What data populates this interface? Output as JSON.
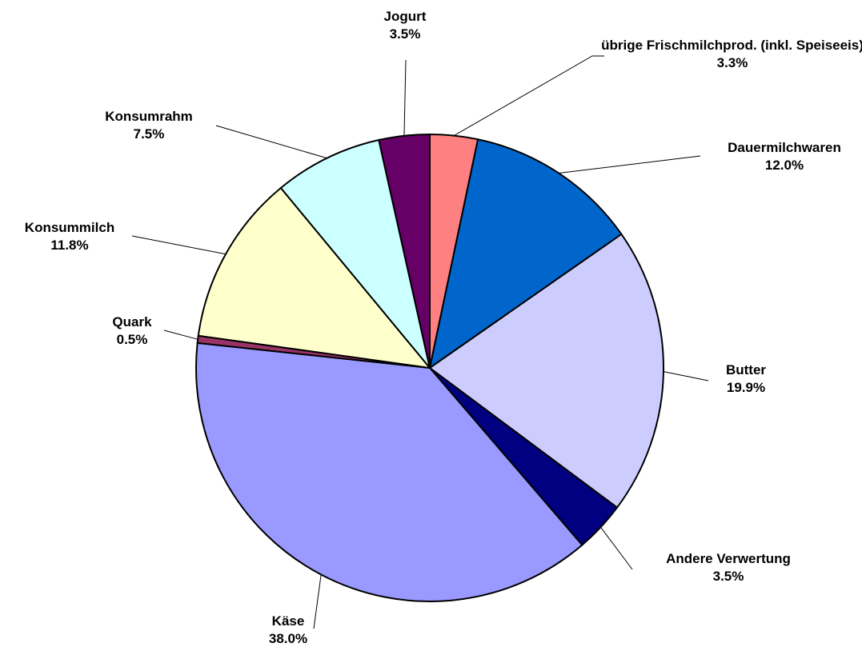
{
  "chart_data": {
    "type": "pie",
    "categories": [
      "übrige Frischmilchprod. (inkl. Speiseeis)",
      "Dauermilchwaren",
      "Butter",
      "Andere Verwertung",
      "Käse",
      "Quark",
      "Konsummilch",
      "Konsumrahm",
      "Jogurt"
    ],
    "values": [
      3.3,
      12.0,
      19.9,
      3.5,
      38.0,
      0.5,
      11.8,
      7.5,
      3.5
    ],
    "value_labels": [
      "3.3%",
      "12.0%",
      "19.9%",
      "3.5%",
      "38.0%",
      "0.5%",
      "11.8%",
      "7.5%",
      "3.5%"
    ],
    "colors": [
      "#FF8080",
      "#0066CC",
      "#CCCCFF",
      "#000080",
      "#9999FF",
      "#993366",
      "#FFFFCC",
      "#CCFFFF",
      "#660066"
    ]
  }
}
